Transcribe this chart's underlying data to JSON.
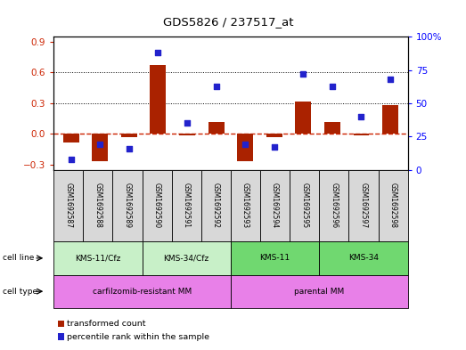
{
  "title": "GDS5826 / 237517_at",
  "samples": [
    "GSM1692587",
    "GSM1692588",
    "GSM1692589",
    "GSM1692590",
    "GSM1692591",
    "GSM1692592",
    "GSM1692593",
    "GSM1692594",
    "GSM1692595",
    "GSM1692596",
    "GSM1692597",
    "GSM1692598"
  ],
  "transformed_count": [
    -0.08,
    -0.27,
    -0.03,
    0.67,
    -0.01,
    0.12,
    -0.27,
    -0.03,
    0.32,
    0.12,
    -0.01,
    0.28
  ],
  "percentile_rank": [
    8,
    19,
    16,
    88,
    35,
    63,
    19,
    17,
    72,
    63,
    40,
    68
  ],
  "cell_line_groups": [
    {
      "label": "KMS-11/Cfz",
      "start": 0,
      "end": 3,
      "color": "#c8f0c8"
    },
    {
      "label": "KMS-34/Cfz",
      "start": 3,
      "end": 6,
      "color": "#c8f0c8"
    },
    {
      "label": "KMS-11",
      "start": 6,
      "end": 9,
      "color": "#70d870"
    },
    {
      "label": "KMS-34",
      "start": 9,
      "end": 12,
      "color": "#70d870"
    }
  ],
  "cell_type_groups": [
    {
      "label": "carfilzomib-resistant MM",
      "start": 0,
      "end": 6,
      "color": "#e880e8"
    },
    {
      "label": "parental MM",
      "start": 6,
      "end": 12,
      "color": "#e880e8"
    }
  ],
  "bar_color": "#aa2200",
  "dot_color": "#2222cc",
  "zero_line_color": "#cc2200",
  "ylim_left": [
    -0.35,
    0.95
  ],
  "ylim_right": [
    0,
    100
  ],
  "yticks_left": [
    -0.3,
    0.0,
    0.3,
    0.6,
    0.9
  ],
  "yticks_right": [
    0,
    25,
    50,
    75,
    100
  ],
  "legend_labels": [
    "transformed count",
    "percentile rank within the sample"
  ],
  "legend_colors": [
    "#aa2200",
    "#2222cc"
  ],
  "bg_color": "#d8d8d8"
}
